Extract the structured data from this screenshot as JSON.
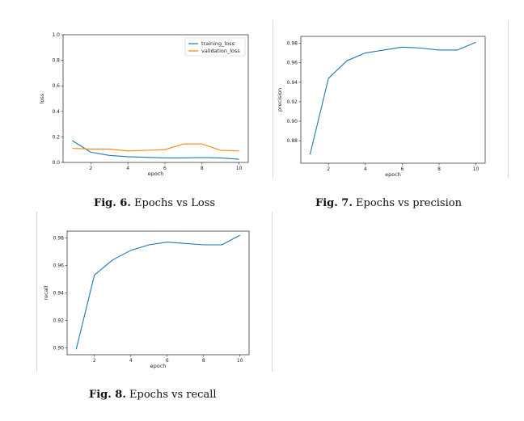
{
  "chart_data": [
    {
      "type": "line",
      "caption": {
        "label": "Fig. 6.",
        "text": " Epochs vs Loss"
      },
      "xlabel": "epoch",
      "ylabel": "loss",
      "xlim": [
        0.5,
        10.5
      ],
      "ylim": [
        0.0,
        1.0
      ],
      "xticks": [
        2,
        4,
        6,
        8,
        10
      ],
      "yticks": [
        0.0,
        0.2,
        0.4,
        0.6,
        0.8,
        1.0
      ],
      "ytick_labels": [
        "0.0",
        "0.2",
        "0.4",
        "0.6",
        "0.8",
        "1.0"
      ],
      "legend": "top-right",
      "x": [
        1,
        2,
        3,
        4,
        5,
        6,
        7,
        8,
        9,
        10
      ],
      "series": [
        {
          "name": "training_loss",
          "color": "#1f77b4",
          "values": [
            0.17,
            0.08,
            0.055,
            0.045,
            0.04,
            0.035,
            0.035,
            0.038,
            0.035,
            0.025
          ]
        },
        {
          "name": "validation_loss",
          "color": "#ff7f0e",
          "values": [
            0.11,
            0.105,
            0.105,
            0.09,
            0.095,
            0.1,
            0.145,
            0.145,
            0.095,
            0.09
          ]
        }
      ]
    },
    {
      "type": "line",
      "caption": {
        "label": "Fig. 7.",
        "text": " Epochs vs precision"
      },
      "xlabel": "epoch",
      "ylabel": "precision",
      "xlim": [
        0.5,
        10.5
      ],
      "ylim": [
        0.857,
        0.987
      ],
      "xticks": [
        2,
        4,
        6,
        8,
        10
      ],
      "yticks": [
        0.88,
        0.9,
        0.92,
        0.94,
        0.96,
        0.98
      ],
      "ytick_labels": [
        "0.88",
        "0.90",
        "0.92",
        "0.94",
        "0.96",
        "0.98"
      ],
      "x": [
        1,
        2,
        3,
        4,
        5,
        6,
        7,
        8,
        9,
        10
      ],
      "series": [
        {
          "name": "precision",
          "color": "#1f77b4",
          "values": [
            0.866,
            0.944,
            0.962,
            0.97,
            0.973,
            0.976,
            0.975,
            0.973,
            0.973,
            0.981
          ]
        }
      ]
    },
    {
      "type": "line",
      "caption": {
        "label": "Fig. 8.",
        "text": " Epochs vs recall"
      },
      "xlabel": "epoch",
      "ylabel": "recall",
      "xlim": [
        0.5,
        10.5
      ],
      "ylim": [
        0.895,
        0.985
      ],
      "xticks": [
        2,
        4,
        6,
        8,
        10
      ],
      "yticks": [
        0.9,
        0.92,
        0.94,
        0.96,
        0.98
      ],
      "ytick_labels": [
        "0.90",
        "0.92",
        "0.94",
        "0.96",
        "0.98"
      ],
      "x": [
        1,
        2,
        3,
        4,
        5,
        6,
        7,
        8,
        9,
        10
      ],
      "series": [
        {
          "name": "recall",
          "color": "#1f77b4",
          "values": [
            0.899,
            0.953,
            0.964,
            0.971,
            0.975,
            0.977,
            0.976,
            0.975,
            0.975,
            0.982
          ]
        }
      ]
    }
  ]
}
